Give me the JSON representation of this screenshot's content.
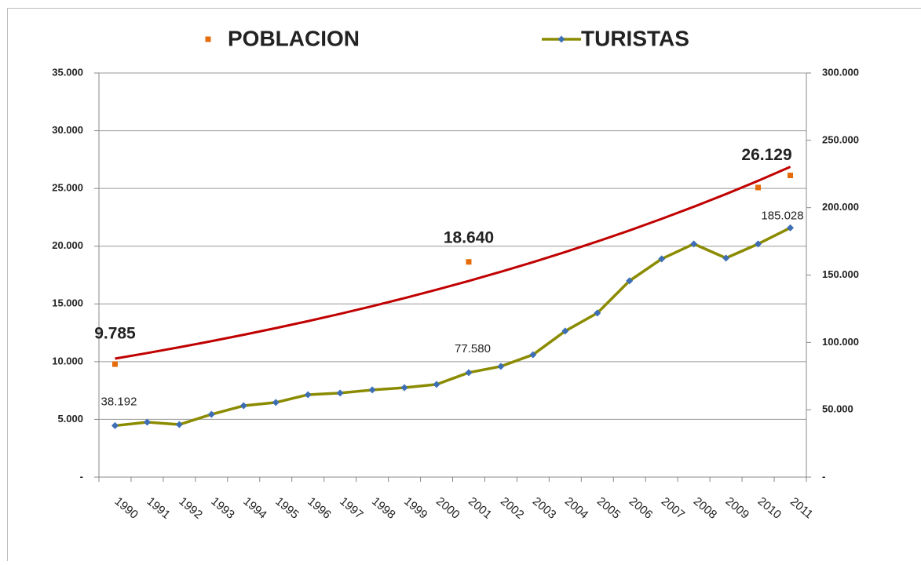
{
  "chart_data": {
    "type": "line",
    "categories": [
      "1990",
      "1991",
      "1992",
      "1993",
      "1994",
      "1995",
      "1996",
      "1997",
      "1998",
      "1999",
      "2000",
      "2001",
      "2002",
      "2003",
      "2004",
      "2005",
      "2006",
      "2007",
      "2008",
      "2009",
      "2010",
      "2011"
    ],
    "series": [
      {
        "name": "POBLACION",
        "color": "#e46c0a",
        "axis": "y",
        "line": false,
        "marker": "square",
        "values": [
          9785,
          null,
          null,
          null,
          null,
          null,
          null,
          null,
          null,
          null,
          null,
          18640,
          null,
          null,
          null,
          null,
          null,
          null,
          null,
          null,
          25080,
          26129
        ],
        "value_labels": [
          "9.785",
          null,
          null,
          null,
          null,
          null,
          null,
          null,
          null,
          null,
          null,
          "18.640",
          null,
          null,
          null,
          null,
          null,
          null,
          null,
          null,
          null,
          "26.129"
        ]
      },
      {
        "name": "TURISTAS",
        "color": "#8b8b00",
        "marker_color": "#3e6fb5",
        "axis": "y2",
        "line": true,
        "marker": "diamond",
        "values": [
          38192,
          40800,
          39000,
          46600,
          53000,
          55400,
          61200,
          62400,
          64700,
          66400,
          68800,
          77580,
          82200,
          90900,
          108400,
          121800,
          145700,
          162000,
          173100,
          162600,
          173100,
          185028
        ],
        "value_labels": [
          "38.192",
          null,
          null,
          null,
          null,
          null,
          null,
          null,
          null,
          null,
          null,
          "77.580",
          null,
          null,
          null,
          null,
          null,
          null,
          null,
          null,
          null,
          "185.028"
        ]
      }
    ],
    "trendline": {
      "series": 0,
      "color": "#c00000",
      "values": [
        10260,
        10741,
        11245,
        11772,
        12325,
        12903,
        13508,
        14142,
        14805,
        15500,
        16227,
        16988,
        17785,
        18619,
        19492,
        20407,
        21364,
        22366,
        23415,
        24514,
        25664,
        26868
      ]
    },
    "ylim": [
      0,
      35000
    ],
    "yticks": [
      {
        "value": 0,
        "label": "-"
      },
      {
        "value": 5000,
        "label": "5.000"
      },
      {
        "value": 10000,
        "label": "10.000"
      },
      {
        "value": 15000,
        "label": "15.000"
      },
      {
        "value": 20000,
        "label": "20.000"
      },
      {
        "value": 25000,
        "label": "25.000"
      },
      {
        "value": 30000,
        "label": "30.000"
      },
      {
        "value": 35000,
        "label": "35.000"
      }
    ],
    "y2lim": [
      0,
      300000
    ],
    "y2ticks": [
      {
        "value": 0,
        "label": "-"
      },
      {
        "value": 50000,
        "label": "50.000"
      },
      {
        "value": 100000,
        "label": "100.000"
      },
      {
        "value": 150000,
        "label": "150.000"
      },
      {
        "value": 200000,
        "label": "200.000"
      },
      {
        "value": 250000,
        "label": "250.000"
      },
      {
        "value": 300000,
        "label": "300.000"
      }
    ],
    "grid": true,
    "legend": "top"
  }
}
